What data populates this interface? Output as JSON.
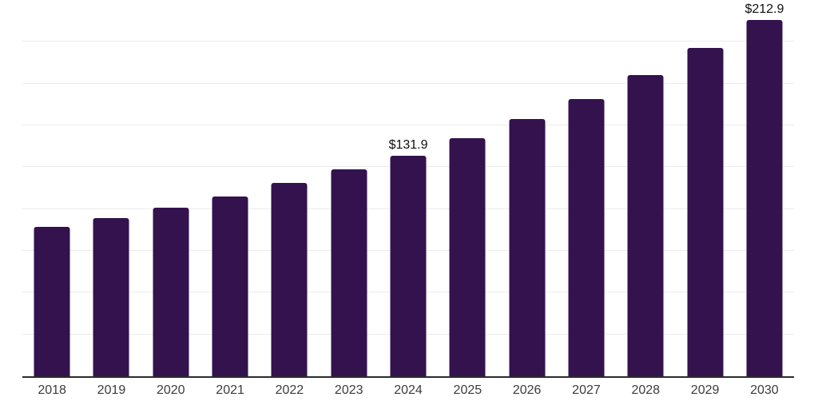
{
  "chart_data": {
    "type": "bar",
    "title": "",
    "xlabel": "",
    "ylabel": "",
    "categories": [
      "2018",
      "2019",
      "2020",
      "2021",
      "2022",
      "2023",
      "2024",
      "2025",
      "2026",
      "2027",
      "2028",
      "2029",
      "2030"
    ],
    "values": [
      89.2,
      94.7,
      100.9,
      107.6,
      115.6,
      123.9,
      131.9,
      142.6,
      153.6,
      166.0,
      179.9,
      196.2,
      212.9
    ],
    "data_labels": [
      "",
      "",
      "",
      "",
      "",
      "",
      "$131.9",
      "",
      "",
      "",
      "",
      "",
      "$212.9"
    ],
    "ylim": [
      0,
      225
    ],
    "grid_step": 25,
    "grid": true,
    "legend": false,
    "colors": {
      "bar": "#33124E",
      "axis": "#2B2B2B",
      "gridline": "#ECECEC",
      "tick_label": "#3C3C3C",
      "data_label": "#101010",
      "background": "#FFFFFF"
    }
  }
}
